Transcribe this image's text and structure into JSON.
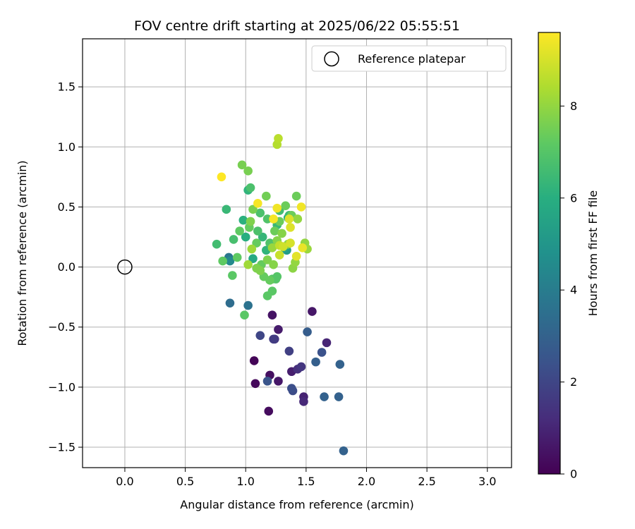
{
  "chart_data": {
    "type": "scatter",
    "title": "FOV centre drift starting at 2025/06/22 05:55:51",
    "xlabel": "Angular distance from reference (arcmin)",
    "ylabel": "Rotation from reference (arcmin)",
    "xlim": [
      -0.35,
      3.2
    ],
    "ylim": [
      -1.67,
      1.9
    ],
    "xticks": [
      0.0,
      0.5,
      1.0,
      1.5,
      2.0,
      2.5,
      3.0
    ],
    "xtick_labels": [
      "0.0",
      "0.5",
      "1.0",
      "1.5",
      "2.0",
      "2.5",
      "3.0"
    ],
    "yticks": [
      -1.5,
      -1.0,
      -0.5,
      0.0,
      0.5,
      1.0,
      1.5
    ],
    "ytick_labels": [
      "−1.5",
      "−1.0",
      "−0.5",
      "0.0",
      "0.5",
      "1.0",
      "1.5"
    ],
    "grid": true,
    "colormap": "viridis",
    "colorbar": {
      "label": "Hours from first FF file",
      "range": [
        0,
        9.6
      ],
      "ticks": [
        0,
        2,
        4,
        6,
        8
      ],
      "tick_labels": [
        "0",
        "2",
        "4",
        "6",
        "8"
      ]
    },
    "legend": {
      "position": "top-right",
      "entries": [
        {
          "label": "Reference platepar",
          "marker": "hollow-circle"
        }
      ]
    },
    "reference_point": {
      "x": 0.0,
      "y": 0.0
    },
    "points": [
      {
        "x": 1.07,
        "y": -0.78,
        "c": 0.1
      },
      {
        "x": 1.08,
        "y": -0.97,
        "c": 0.2
      },
      {
        "x": 1.19,
        "y": -1.2,
        "c": 0.3
      },
      {
        "x": 1.2,
        "y": -0.9,
        "c": 0.4
      },
      {
        "x": 1.22,
        "y": -0.4,
        "c": 0.5
      },
      {
        "x": 1.27,
        "y": -0.95,
        "c": 0.6
      },
      {
        "x": 1.27,
        "y": -0.52,
        "c": 0.7
      },
      {
        "x": 1.38,
        "y": -0.87,
        "c": 0.8
      },
      {
        "x": 1.55,
        "y": -0.37,
        "c": 0.6
      },
      {
        "x": 1.48,
        "y": -1.08,
        "c": 0.9
      },
      {
        "x": 1.48,
        "y": -1.12,
        "c": 1.1
      },
      {
        "x": 1.67,
        "y": -0.63,
        "c": 1.0
      },
      {
        "x": 1.43,
        "y": -0.85,
        "c": 1.3
      },
      {
        "x": 1.46,
        "y": -0.83,
        "c": 1.5
      },
      {
        "x": 1.24,
        "y": -0.6,
        "c": 1.5
      },
      {
        "x": 1.23,
        "y": -0.6,
        "c": 1.7
      },
      {
        "x": 1.36,
        "y": -0.7,
        "c": 1.8
      },
      {
        "x": 1.12,
        "y": -0.57,
        "c": 2.0
      },
      {
        "x": 1.39,
        "y": -1.03,
        "c": 2.2
      },
      {
        "x": 1.38,
        "y": -1.01,
        "c": 2.3
      },
      {
        "x": 1.18,
        "y": -0.95,
        "c": 2.5
      },
      {
        "x": 1.63,
        "y": -0.71,
        "c": 2.4
      },
      {
        "x": 1.51,
        "y": -0.54,
        "c": 2.8
      },
      {
        "x": 1.58,
        "y": -0.79,
        "c": 2.9
      },
      {
        "x": 1.65,
        "y": -1.08,
        "c": 3.0
      },
      {
        "x": 1.77,
        "y": -1.08,
        "c": 3.0
      },
      {
        "x": 1.78,
        "y": -0.81,
        "c": 3.0
      },
      {
        "x": 1.81,
        "y": -1.53,
        "c": 3.0
      },
      {
        "x": 0.87,
        "y": -0.3,
        "c": 3.4
      },
      {
        "x": 1.02,
        "y": -0.32,
        "c": 3.6
      },
      {
        "x": 0.86,
        "y": 0.08,
        "c": 3.8
      },
      {
        "x": 0.87,
        "y": 0.05,
        "c": 4.5
      },
      {
        "x": 1.34,
        "y": 0.14,
        "c": 5.2
      },
      {
        "x": 1.32,
        "y": 0.16,
        "c": 5.6
      },
      {
        "x": 1.06,
        "y": 0.07,
        "c": 5.8
      },
      {
        "x": 1.0,
        "y": 0.25,
        "c": 6.0
      },
      {
        "x": 1.17,
        "y": 0.14,
        "c": 6.2
      },
      {
        "x": 1.14,
        "y": 0.25,
        "c": 6.3
      },
      {
        "x": 1.02,
        "y": 0.64,
        "c": 6.2
      },
      {
        "x": 0.98,
        "y": 0.39,
        "c": 6.1
      },
      {
        "x": 0.84,
        "y": 0.48,
        "c": 6.4
      },
      {
        "x": 1.35,
        "y": 0.41,
        "c": 6.0
      },
      {
        "x": 1.36,
        "y": 0.43,
        "c": 6.5
      },
      {
        "x": 1.26,
        "y": 0.35,
        "c": 6.4
      },
      {
        "x": 1.28,
        "y": 0.47,
        "c": 6.6
      },
      {
        "x": 0.76,
        "y": 0.19,
        "c": 6.6
      },
      {
        "x": 0.9,
        "y": 0.23,
        "c": 6.7
      },
      {
        "x": 1.04,
        "y": 0.66,
        "c": 6.8
      },
      {
        "x": 1.1,
        "y": 0.3,
        "c": 6.8
      },
      {
        "x": 1.12,
        "y": 0.45,
        "c": 6.8
      },
      {
        "x": 1.18,
        "y": 0.4,
        "c": 6.9
      },
      {
        "x": 1.2,
        "y": 0.2,
        "c": 6.9
      },
      {
        "x": 1.22,
        "y": -0.1,
        "c": 7.0
      },
      {
        "x": 1.25,
        "y": -0.1,
        "c": 7.0
      },
      {
        "x": 1.26,
        "y": -0.08,
        "c": 7.0
      },
      {
        "x": 1.22,
        "y": -0.2,
        "c": 7.1
      },
      {
        "x": 1.18,
        "y": -0.24,
        "c": 7.1
      },
      {
        "x": 0.99,
        "y": -0.4,
        "c": 7.1
      },
      {
        "x": 0.89,
        "y": -0.07,
        "c": 7.1
      },
      {
        "x": 0.81,
        "y": 0.05,
        "c": 7.2
      },
      {
        "x": 0.93,
        "y": 0.08,
        "c": 7.2
      },
      {
        "x": 0.95,
        "y": 0.3,
        "c": 7.2
      },
      {
        "x": 1.03,
        "y": 0.33,
        "c": 7.3
      },
      {
        "x": 1.09,
        "y": 0.2,
        "c": 7.3
      },
      {
        "x": 1.13,
        "y": 0.02,
        "c": 7.3
      },
      {
        "x": 1.15,
        "y": -0.08,
        "c": 7.3
      },
      {
        "x": 1.2,
        "y": -0.11,
        "c": 7.3
      },
      {
        "x": 1.24,
        "y": 0.3,
        "c": 7.4
      },
      {
        "x": 1.28,
        "y": 0.38,
        "c": 7.4
      },
      {
        "x": 1.33,
        "y": 0.51,
        "c": 7.4
      },
      {
        "x": 1.38,
        "y": 0.43,
        "c": 7.4
      },
      {
        "x": 1.42,
        "y": 0.59,
        "c": 7.4
      },
      {
        "x": 1.17,
        "y": 0.59,
        "c": 7.5
      },
      {
        "x": 1.02,
        "y": 0.8,
        "c": 7.6
      },
      {
        "x": 0.97,
        "y": 0.85,
        "c": 7.6
      },
      {
        "x": 1.06,
        "y": 0.48,
        "c": 7.6
      },
      {
        "x": 1.04,
        "y": 0.38,
        "c": 7.7
      },
      {
        "x": 1.09,
        "y": -0.01,
        "c": 7.7
      },
      {
        "x": 1.12,
        "y": -0.03,
        "c": 7.7
      },
      {
        "x": 1.18,
        "y": 0.06,
        "c": 7.7
      },
      {
        "x": 1.23,
        "y": 0.02,
        "c": 7.8
      },
      {
        "x": 1.26,
        "y": 0.22,
        "c": 7.8
      },
      {
        "x": 1.3,
        "y": 0.28,
        "c": 7.8
      },
      {
        "x": 1.35,
        "y": 0.19,
        "c": 7.9
      },
      {
        "x": 1.39,
        "y": -0.01,
        "c": 7.9
      },
      {
        "x": 1.41,
        "y": 0.04,
        "c": 8.0
      },
      {
        "x": 1.43,
        "y": 0.4,
        "c": 8.0
      },
      {
        "x": 1.49,
        "y": 0.2,
        "c": 8.0
      },
      {
        "x": 1.51,
        "y": 0.15,
        "c": 8.1
      },
      {
        "x": 1.22,
        "y": 0.16,
        "c": 8.1
      },
      {
        "x": 1.05,
        "y": 0.15,
        "c": 8.2
      },
      {
        "x": 1.02,
        "y": 0.02,
        "c": 8.2
      },
      {
        "x": 1.26,
        "y": 1.02,
        "c": 8.5
      },
      {
        "x": 1.27,
        "y": 1.07,
        "c": 8.6
      },
      {
        "x": 1.28,
        "y": 0.18,
        "c": 8.7
      },
      {
        "x": 1.28,
        "y": 0.1,
        "c": 8.8
      },
      {
        "x": 1.31,
        "y": 0.17,
        "c": 8.9
      },
      {
        "x": 1.37,
        "y": 0.2,
        "c": 9.0
      },
      {
        "x": 1.37,
        "y": 0.33,
        "c": 9.1
      },
      {
        "x": 1.36,
        "y": 0.4,
        "c": 9.1
      },
      {
        "x": 1.42,
        "y": 0.09,
        "c": 9.2
      },
      {
        "x": 1.47,
        "y": 0.16,
        "c": 9.3
      },
      {
        "x": 1.46,
        "y": 0.5,
        "c": 9.4
      },
      {
        "x": 1.26,
        "y": 0.49,
        "c": 9.4
      },
      {
        "x": 1.23,
        "y": 0.4,
        "c": 9.5
      },
      {
        "x": 1.1,
        "y": 0.53,
        "c": 9.5
      },
      {
        "x": 0.8,
        "y": 0.75,
        "c": 9.6
      }
    ]
  }
}
